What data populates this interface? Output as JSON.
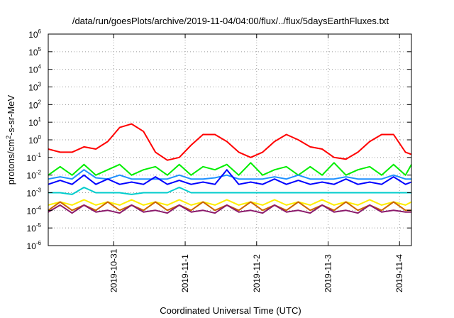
{
  "chart_data": {
    "type": "line",
    "title": "/data/run/goesPlots/archive/2019-11-04/04:00/flux/../flux/5daysEarthFluxes.txt",
    "xlabel": "Coordinated Universal Time (UTC)",
    "ylabel": {
      "prefix": "protons/cm",
      "sup": "2",
      "suffix": "-s-sr-MeV"
    },
    "y_scale": "log",
    "ylim": [
      1e-06,
      1000000.0
    ],
    "xlim": [
      "2019-10-30T02:00",
      "2019-11-04T04:00"
    ],
    "x_ticks": [
      {
        "label": "2019-10-31",
        "date": "2019-10-31T00:00"
      },
      {
        "label": "2019-11-1",
        "date": "2019-11-01T00:00"
      },
      {
        "label": "2019-11-2",
        "date": "2019-11-02T00:00"
      },
      {
        "label": "2019-11-3",
        "date": "2019-11-03T00:00"
      },
      {
        "label": "2019-11-4",
        "date": "2019-11-04T00:00"
      }
    ],
    "y_ticks": [
      {
        "base": "10",
        "exp": "-6",
        "value": 1e-06
      },
      {
        "base": "10",
        "exp": "-5",
        "value": 1e-05
      },
      {
        "base": "10",
        "exp": "-4",
        "value": 0.0001
      },
      {
        "base": "10",
        "exp": "-3",
        "value": 0.001
      },
      {
        "base": "10",
        "exp": "-2",
        "value": 0.01
      },
      {
        "base": "10",
        "exp": "-1",
        "value": 0.1
      },
      {
        "base": "10",
        "exp": "0",
        "value": 1
      },
      {
        "base": "10",
        "exp": "1",
        "value": 10
      },
      {
        "base": "10",
        "exp": "2",
        "value": 100
      },
      {
        "base": "10",
        "exp": "3",
        "value": 1000
      },
      {
        "base": "10",
        "exp": "4",
        "value": 10000
      },
      {
        "base": "10",
        "exp": "5",
        "value": 100000
      },
      {
        "base": "10",
        "exp": "6",
        "value": 1000000
      }
    ],
    "grid": true,
    "grid_style": "dotted",
    "legend": "none",
    "x_dates": [
      "2019-10-30T02:00",
      "2019-10-30T06:00",
      "2019-10-30T10:00",
      "2019-10-30T14:00",
      "2019-10-30T18:00",
      "2019-10-30T22:00",
      "2019-10-31T02:00",
      "2019-10-31T06:00",
      "2019-10-31T10:00",
      "2019-10-31T14:00",
      "2019-10-31T18:00",
      "2019-10-31T22:00",
      "2019-11-01T02:00",
      "2019-11-01T06:00",
      "2019-11-01T10:00",
      "2019-11-01T14:00",
      "2019-11-01T18:00",
      "2019-11-01T22:00",
      "2019-11-02T02:00",
      "2019-11-02T06:00",
      "2019-11-02T10:00",
      "2019-11-02T14:00",
      "2019-11-02T18:00",
      "2019-11-02T22:00",
      "2019-11-03T02:00",
      "2019-11-03T06:00",
      "2019-11-03T10:00",
      "2019-11-03T14:00",
      "2019-11-03T18:00",
      "2019-11-03T22:00",
      "2019-11-04T02:00",
      "2019-11-04T04:00"
    ],
    "series": [
      {
        "color": "#ff0000",
        "values": [
          0.3,
          0.2,
          0.2,
          0.4,
          0.3,
          0.8,
          5,
          8,
          3,
          0.2,
          0.07,
          0.1,
          0.5,
          2,
          2,
          0.8,
          0.2,
          0.1,
          0.2,
          0.8,
          2,
          1,
          0.4,
          0.3,
          0.1,
          0.08,
          0.2,
          0.8,
          2,
          2,
          0.2,
          0.15
        ]
      },
      {
        "color": "#00ee00",
        "values": [
          0.01,
          0.03,
          0.01,
          0.04,
          0.01,
          0.02,
          0.04,
          0.01,
          0.02,
          0.03,
          0.01,
          0.04,
          0.01,
          0.03,
          0.02,
          0.04,
          0.01,
          0.05,
          0.01,
          0.02,
          0.03,
          0.01,
          0.03,
          0.01,
          0.05,
          0.01,
          0.02,
          0.03,
          0.01,
          0.04,
          0.01,
          0.04
        ]
      },
      {
        "color": "#1e90ff",
        "values": [
          0.006,
          0.008,
          0.006,
          0.02,
          0.007,
          0.006,
          0.01,
          0.006,
          0.006,
          0.006,
          0.006,
          0.01,
          0.006,
          0.006,
          0.007,
          0.01,
          0.006,
          0.006,
          0.006,
          0.008,
          0.006,
          0.01,
          0.006,
          0.006,
          0.006,
          0.008,
          0.006,
          0.006,
          0.006,
          0.01,
          0.006,
          0.006
        ]
      },
      {
        "color": "#0000ff",
        "values": [
          0.003,
          0.005,
          0.003,
          0.01,
          0.003,
          0.006,
          0.003,
          0.004,
          0.003,
          0.008,
          0.003,
          0.005,
          0.003,
          0.004,
          0.003,
          0.02,
          0.003,
          0.004,
          0.003,
          0.006,
          0.003,
          0.005,
          0.003,
          0.004,
          0.003,
          0.006,
          0.003,
          0.004,
          0.003,
          0.008,
          0.003,
          0.004
        ]
      },
      {
        "color": "#00cccc",
        "values": [
          0.001,
          0.001,
          0.0008,
          0.002,
          0.001,
          0.001,
          0.001,
          0.0008,
          0.001,
          0.001,
          0.001,
          0.002,
          0.001,
          0.001,
          0.001,
          0.001,
          0.001,
          0.001,
          0.001,
          0.001,
          0.001,
          0.001,
          0.001,
          0.001,
          0.001,
          0.001,
          0.001,
          0.001,
          0.001,
          0.001,
          0.001,
          0.001
        ]
      },
      {
        "color": "#ffee00",
        "values": [
          0.0002,
          0.0003,
          0.0002,
          0.0004,
          0.0002,
          0.0003,
          0.0002,
          0.0004,
          0.0002,
          0.0003,
          0.0002,
          0.0004,
          0.0002,
          0.0003,
          0.0002,
          0.0004,
          0.0002,
          0.0003,
          0.0002,
          0.0004,
          0.0002,
          0.0003,
          0.0002,
          0.0004,
          0.0002,
          0.0003,
          0.0002,
          0.0004,
          0.0002,
          0.0003,
          0.0002,
          0.0003
        ]
      },
      {
        "color": "#cc6600",
        "values": [
          0.0001,
          0.0003,
          0.0001,
          0.0002,
          0.0001,
          0.0003,
          0.0001,
          0.0002,
          0.0001,
          0.0003,
          0.0001,
          0.0002,
          0.0001,
          0.0003,
          0.0001,
          0.0002,
          0.0001,
          0.0003,
          0.0001,
          0.0002,
          0.0001,
          0.0003,
          0.0001,
          0.0002,
          0.0001,
          0.0003,
          0.0001,
          0.0002,
          0.0001,
          0.0003,
          0.0001,
          0.0001
        ]
      },
      {
        "color": "#8b1a6b",
        "values": [
          8e-05,
          0.0002,
          7e-05,
          0.0002,
          8e-05,
          0.0001,
          7e-05,
          0.0002,
          8e-05,
          0.0001,
          7e-05,
          0.0002,
          8e-05,
          0.0001,
          7e-05,
          0.0002,
          8e-05,
          0.0001,
          7e-05,
          0.0002,
          8e-05,
          0.0001,
          7e-05,
          0.0002,
          8e-05,
          0.0001,
          7e-05,
          0.0002,
          8e-05,
          0.0001,
          8e-05,
          8e-05
        ]
      }
    ]
  }
}
